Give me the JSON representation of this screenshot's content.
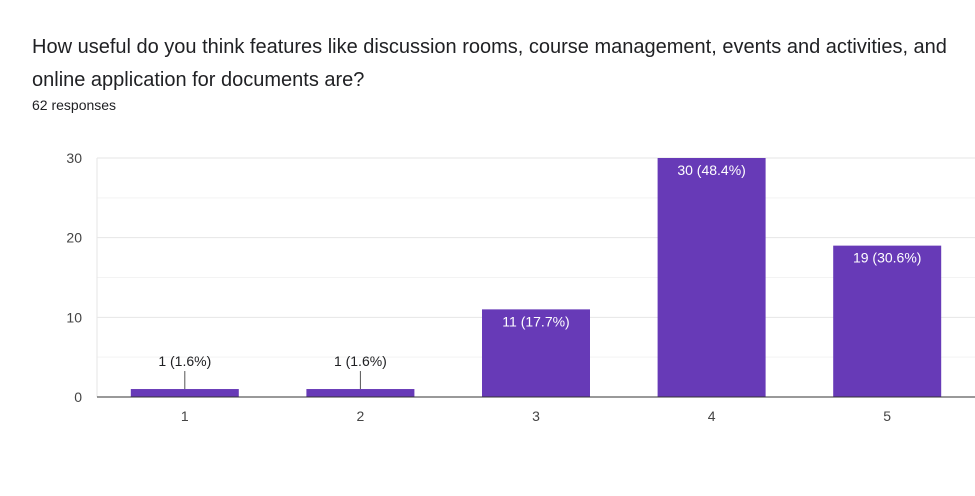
{
  "form": {
    "question": "How useful do you think features like discussion rooms, course management, events and activities, and online application for documents are?",
    "responses": "62 responses"
  },
  "chart_data": {
    "type": "bar",
    "categories": [
      "1",
      "2",
      "3",
      "4",
      "5"
    ],
    "values": [
      1,
      1,
      11,
      30,
      19
    ],
    "data_labels": [
      "1 (1.6%)",
      "1 (1.6%)",
      "11 (17.7%)",
      "30 (48.4%)",
      "19 (30.6%)"
    ],
    "title": "How useful do you think features like discussion rooms, course management, events and activities, and online application for documents are?",
    "xlabel": "",
    "ylabel": "",
    "ylim": [
      0,
      30
    ],
    "yticks": [
      0,
      10,
      20,
      30
    ],
    "grid": true,
    "bar_color": "#673ab7"
  }
}
